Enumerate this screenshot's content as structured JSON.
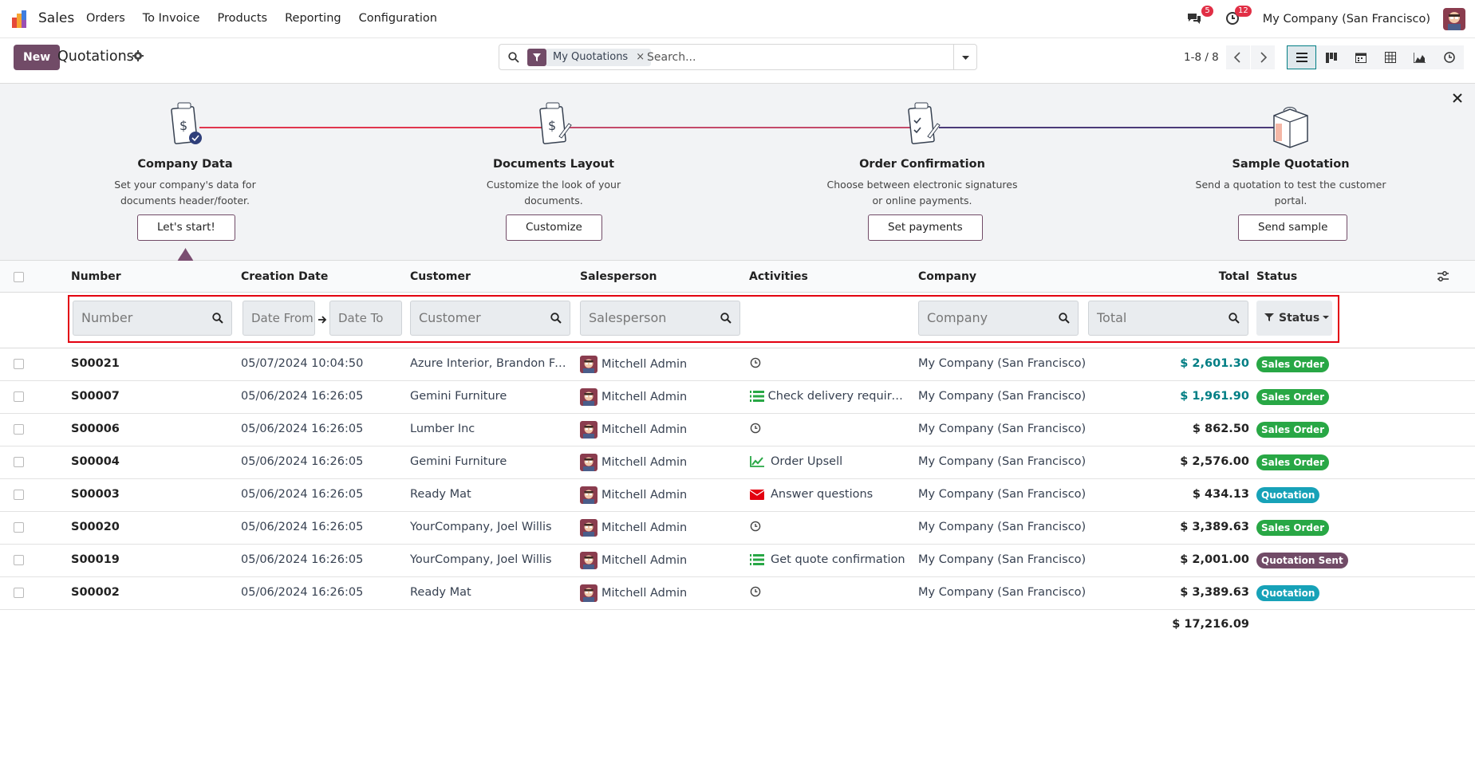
{
  "navbar": {
    "app_name": "Sales",
    "menu": [
      "Orders",
      "To Invoice",
      "Products",
      "Reporting",
      "Configuration"
    ],
    "messages_badge": "5",
    "activities_badge": "12",
    "company": "My Company (San Francisco)"
  },
  "control": {
    "new_label": "New",
    "title": "Quotations",
    "facet_label": "My Quotations",
    "search_placeholder": "Search...",
    "pager": "1-8 / 8"
  },
  "onboarding": {
    "steps": [
      {
        "title": "Company Data",
        "desc": "Set your company's data for documents header/footer.",
        "button": "Let's start!"
      },
      {
        "title": "Documents Layout",
        "desc": "Customize the look of your documents.",
        "button": "Customize"
      },
      {
        "title": "Order Confirmation",
        "desc": "Choose between electronic signatures or online payments.",
        "button": "Set payments"
      },
      {
        "title": "Sample Quotation",
        "desc": "Send a quotation to test the customer portal.",
        "button": "Send sample"
      }
    ]
  },
  "table": {
    "headers": {
      "number": "Number",
      "creation_date": "Creation Date",
      "customer": "Customer",
      "salesperson": "Salesperson",
      "activities": "Activities",
      "company": "Company",
      "total": "Total",
      "status": "Status"
    },
    "filters": {
      "number": "Number",
      "date_from": "Date From",
      "date_to": "Date To",
      "customer": "Customer",
      "salesperson": "Salesperson",
      "company": "Company",
      "total": "Total",
      "status": "Status"
    },
    "rows": [
      {
        "number": "S00021",
        "date": "05/07/2024 10:04:50",
        "customer": "Azure Interior, Brandon Freeman",
        "salesperson": "Mitchell Admin",
        "activity": "",
        "activity_icon": "clock-icon",
        "company": "My Company (San Francisco)",
        "total": "$ 2,601.30",
        "total_link": true,
        "status": "Sales Order",
        "status_color": "#28a745"
      },
      {
        "number": "S00007",
        "date": "05/06/2024 16:26:05",
        "customer": "Gemini Furniture",
        "salesperson": "Mitchell Admin",
        "activity": "Check delivery requirements",
        "activity_icon": "tasks-icon",
        "company": "My Company (San Francisco)",
        "total": "$ 1,961.90",
        "total_link": true,
        "status": "Sales Order",
        "status_color": "#28a745"
      },
      {
        "number": "S00006",
        "date": "05/06/2024 16:26:05",
        "customer": "Lumber Inc",
        "salesperson": "Mitchell Admin",
        "activity": "",
        "activity_icon": "clock-icon",
        "company": "My Company (San Francisco)",
        "total": "$ 862.50",
        "total_link": false,
        "status": "Sales Order",
        "status_color": "#28a745"
      },
      {
        "number": "S00004",
        "date": "05/06/2024 16:26:05",
        "customer": "Gemini Furniture",
        "salesperson": "Mitchell Admin",
        "activity": "Order Upsell",
        "activity_icon": "chart-icon",
        "company": "My Company (San Francisco)",
        "total": "$ 2,576.00",
        "total_link": false,
        "status": "Sales Order",
        "status_color": "#28a745"
      },
      {
        "number": "S00003",
        "date": "05/06/2024 16:26:05",
        "customer": "Ready Mat",
        "salesperson": "Mitchell Admin",
        "activity": "Answer questions",
        "activity_icon": "envelope-icon",
        "company": "My Company (San Francisco)",
        "total": "$ 434.13",
        "total_link": false,
        "status": "Quotation",
        "status_color": "#17a2b8"
      },
      {
        "number": "S00020",
        "date": "05/06/2024 16:26:05",
        "customer": "YourCompany, Joel Willis",
        "salesperson": "Mitchell Admin",
        "activity": "",
        "activity_icon": "clock-icon",
        "company": "My Company (San Francisco)",
        "total": "$ 3,389.63",
        "total_link": false,
        "status": "Sales Order",
        "status_color": "#28a745"
      },
      {
        "number": "S00019",
        "date": "05/06/2024 16:26:05",
        "customer": "YourCompany, Joel Willis",
        "salesperson": "Mitchell Admin",
        "activity": "Get quote confirmation",
        "activity_icon": "tasks-icon",
        "company": "My Company (San Francisco)",
        "total": "$ 2,001.00",
        "total_link": false,
        "status": "Quotation Sent",
        "status_color": "#714b67"
      },
      {
        "number": "S00002",
        "date": "05/06/2024 16:26:05",
        "customer": "Ready Mat",
        "salesperson": "Mitchell Admin",
        "activity": "",
        "activity_icon": "clock-icon",
        "company": "My Company (San Francisco)",
        "total": "$ 3,389.63",
        "total_link": false,
        "status": "Quotation",
        "status_color": "#17a2b8"
      }
    ],
    "grand_total": "$ 17,216.09"
  },
  "colors": {
    "brand": "#714b67",
    "link": "#017e84",
    "highlight_border": "#e3000f"
  }
}
